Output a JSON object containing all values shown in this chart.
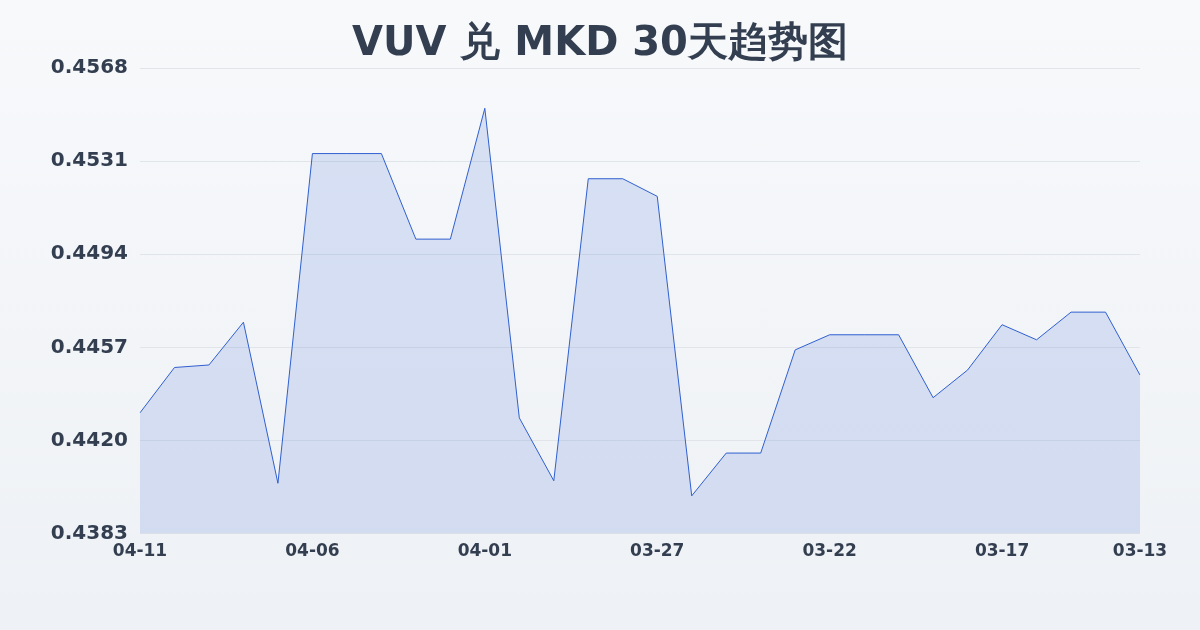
{
  "chart_data": {
    "type": "area",
    "title": "VUV 兑 MKD 30天趋势图",
    "categories": [
      "04-11",
      null,
      null,
      null,
      null,
      "04-06",
      null,
      null,
      null,
      null,
      "04-01",
      null,
      null,
      null,
      null,
      "03-27",
      null,
      null,
      null,
      null,
      "03-22",
      null,
      null,
      null,
      null,
      "03-17",
      null,
      null,
      null,
      "03-13"
    ],
    "series": [
      {
        "color": "#2f5fcf",
        "values": [
          0.4431,
          0.4449,
          0.445,
          0.4467,
          0.4403,
          0.4534,
          0.4534,
          0.4534,
          0.45,
          0.45,
          0.4552,
          0.4429,
          0.4404,
          0.4524,
          0.4524,
          0.4517,
          0.4398,
          0.4415,
          0.4415,
          0.4456,
          0.4462,
          0.4462,
          0.4462,
          0.4437,
          0.4448,
          0.4466,
          0.446,
          0.4471,
          0.4471,
          0.4446
        ]
      }
    ],
    "ylim": [
      0.4383,
      0.4568
    ],
    "yticks": [
      0.4383,
      {
        "value": 0.442,
        "label": "0.4420"
      },
      0.4457,
      0.4494,
      0.4531,
      0.4568
    ],
    "grid": "y",
    "legend": false,
    "marker": "none"
  }
}
